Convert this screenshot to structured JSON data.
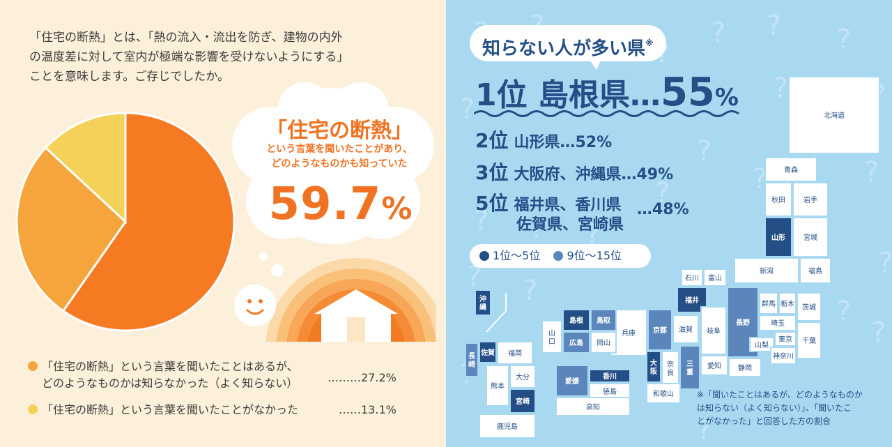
{
  "intro": {
    "lines": [
      "「住宅の断熱」とは、「熱の流入・流出を防ぎ、建物の内外",
      "の温度差に対して室内が極端な影響を受けないようにする」",
      "ことを意味します。ご存じでしたか。"
    ]
  },
  "highlight": {
    "title": "「住宅の断熱」",
    "sub1": "という言葉を聞いたことがあり、",
    "sub2": "どのようなものかも知っていた",
    "value": "59.7",
    "unit": "%"
  },
  "legend": {
    "item1_line1": "「住宅の断熱」という言葉を聞いたことはあるが、",
    "item1_line2": "どのようなものかは知らなかった（よく知らない）",
    "item1_value": "………27.2%",
    "item2_line1": "「住宅の断熱」という言葉を聞いたことがなかった",
    "item2_value": "……13.1%"
  },
  "chart_data": {
    "type": "pie",
    "title": "",
    "slices": [
      {
        "label": "「住宅の断熱」という言葉を聞いたことがあり、どのようなものかも知っていた",
        "value": 59.7,
        "color": "#f57a22"
      },
      {
        "label": "「住宅の断熱」という言葉を聞いたことはあるが、どのようなものかは知らなかった（よく知らない）",
        "value": 27.2,
        "color": "#f5a53b"
      },
      {
        "label": "「住宅の断熱」という言葉を聞いたことがなかった",
        "value": 13.1,
        "color": "#f4d25a"
      }
    ]
  },
  "ranking": {
    "title": "知らない人が多い県",
    "title_mark": "※",
    "first_rank": "1位",
    "first_pref": "島根県…",
    "first_value": "55",
    "first_unit": "%",
    "second": {
      "rank": "2位",
      "text": "山形県…52%"
    },
    "third": {
      "rank": "3位",
      "text": "大阪府、沖縄県…49%"
    },
    "fifth": {
      "rank": "5位",
      "line1": "福井県、香川県",
      "line2": "佐賀県、宮崎県",
      "value": "…48%"
    },
    "legend_top": "1位〜5位",
    "legend_mid": "9位〜15位",
    "colors": {
      "top": "#234e86",
      "mid": "#5b86bb",
      "other": "#ffffff"
    }
  },
  "map": {
    "prefs": [
      {
        "name": "北海道",
        "tier": "other"
      },
      {
        "name": "青森",
        "tier": "other"
      },
      {
        "name": "秋田",
        "tier": "other"
      },
      {
        "name": "岩手",
        "tier": "other"
      },
      {
        "name": "山形",
        "tier": "top"
      },
      {
        "name": "宮城",
        "tier": "other"
      },
      {
        "name": "新潟",
        "tier": "other"
      },
      {
        "name": "福島",
        "tier": "other"
      },
      {
        "name": "石川",
        "tier": "other"
      },
      {
        "name": "富山",
        "tier": "other"
      },
      {
        "name": "福井",
        "tier": "top"
      },
      {
        "name": "長野",
        "tier": "mid"
      },
      {
        "name": "群馬",
        "tier": "other"
      },
      {
        "name": "栃木",
        "tier": "other"
      },
      {
        "name": "茨城",
        "tier": "other"
      },
      {
        "name": "埼玉",
        "tier": "other"
      },
      {
        "name": "東京",
        "tier": "other"
      },
      {
        "name": "千葉",
        "tier": "other"
      },
      {
        "name": "山梨",
        "tier": "other"
      },
      {
        "name": "神奈川",
        "tier": "other"
      },
      {
        "name": "岐阜",
        "tier": "other"
      },
      {
        "name": "愛知",
        "tier": "other"
      },
      {
        "name": "静岡",
        "tier": "other"
      },
      {
        "name": "京都",
        "tier": "mid"
      },
      {
        "name": "滋賀",
        "tier": "other"
      },
      {
        "name": "兵庫",
        "tier": "other"
      },
      {
        "name": "大阪",
        "tier": "top"
      },
      {
        "name": "奈良",
        "tier": "other"
      },
      {
        "name": "三重",
        "tier": "mid"
      },
      {
        "name": "和歌山",
        "tier": "other"
      },
      {
        "name": "鳥取",
        "tier": "mid"
      },
      {
        "name": "島根",
        "tier": "top"
      },
      {
        "name": "岡山",
        "tier": "other"
      },
      {
        "name": "広島",
        "tier": "mid"
      },
      {
        "name": "山口",
        "tier": "other"
      },
      {
        "name": "香川",
        "tier": "top"
      },
      {
        "name": "愛媛",
        "tier": "mid"
      },
      {
        "name": "徳島",
        "tier": "other"
      },
      {
        "name": "高知",
        "tier": "other"
      },
      {
        "name": "福岡",
        "tier": "other"
      },
      {
        "name": "佐賀",
        "tier": "top"
      },
      {
        "name": "長崎",
        "tier": "mid"
      },
      {
        "name": "大分",
        "tier": "other"
      },
      {
        "name": "熊本",
        "tier": "other"
      },
      {
        "name": "宮崎",
        "tier": "top"
      },
      {
        "name": "鹿児島",
        "tier": "other"
      },
      {
        "name": "沖縄",
        "tier": "top"
      }
    ]
  },
  "note": {
    "line1": "※「聞いたことはあるが、どのようなものか",
    "line2": "は知らない（よく知らない）」、「聞いたこ",
    "line3": "とがなかった」と回答した方の割合"
  }
}
